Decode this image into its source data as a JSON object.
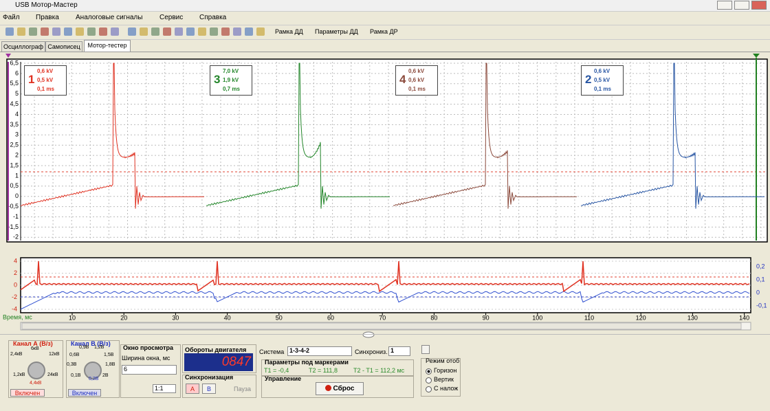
{
  "window": {
    "title": "USB Мотор-Мастер"
  },
  "menu": [
    "Файл",
    "Правка",
    "Аналоговые сигналы",
    "Сервис",
    "Справка"
  ],
  "toolbar": [
    "Рамка ДД",
    "Параметры ДД",
    "Рамка ДР"
  ],
  "tabs": [
    "Осциллограф",
    "Самописец",
    "Мотор-тестер"
  ],
  "scope": {
    "yticks": [
      "6,5",
      "6",
      "5,5",
      "5",
      "4,5",
      "4",
      "3,5",
      "3",
      "2,5",
      "2",
      "1,5",
      "1",
      "0,5",
      "0",
      "-0,5",
      "-1",
      "-1,5",
      "-2"
    ],
    "cylinders": [
      {
        "number": "1",
        "lines": [
          "0,6 kV",
          "0,5 kV",
          "0,1 ms"
        ]
      },
      {
        "number": "3",
        "lines": [
          "7,0 kV",
          "1,9 kV",
          "0,7 ms"
        ]
      },
      {
        "number": "4",
        "lines": [
          "0,6 kV",
          "0,6 kV",
          "0,1 ms"
        ]
      },
      {
        "number": "2",
        "lines": [
          "0,6 kV",
          "0,5 kV",
          "0,1 ms"
        ]
      }
    ]
  },
  "lower": {
    "yticks_left": [
      "4",
      "2",
      "0",
      "-2",
      "-4"
    ],
    "yticks_right": [
      "0,2",
      "0,1",
      "0",
      "-0,1"
    ]
  },
  "xaxis": {
    "label": "Время, мс",
    "ticks": [
      "10",
      "20",
      "30",
      "40",
      "50",
      "60",
      "70",
      "80",
      "90",
      "100",
      "110",
      "120",
      "130",
      "140"
    ]
  },
  "panel": {
    "channel_a": {
      "title": "Канал А (В/з)",
      "scales": [
        "2,4кВ",
        "6кВ",
        "12кВ",
        "1,2кВ",
        "4,4кВ",
        "24кВ"
      ],
      "button": "Включен"
    },
    "channel_b": {
      "title": "Канал В (В/з)",
      "scales": [
        "0,9В",
        "1,2В",
        "0,6В",
        "1,5В",
        "0,3В",
        "1,8В",
        "0,1В",
        "0,2В",
        "2В"
      ],
      "button": "Включен"
    },
    "view": {
      "title": "Окно просмотра",
      "width_label": "Ширина окна, мс",
      "width_value": "6",
      "zoom": "1:1"
    },
    "rpm": {
      "title": "Обороты двигателя",
      "value": "0847"
    },
    "sync": {
      "title": "Синхронизация",
      "a": "A",
      "b": "B",
      "pause": "Пауза"
    },
    "system": {
      "label": "Система",
      "value": "1-3-4-2",
      "sync_label": "Синхрониз.",
      "sync_value": "1"
    },
    "markers": {
      "title": "Параметры под маркерами",
      "t1": "T1 = -0,4",
      "t2": "T2 = 111,8",
      "diff": "T2 - T1 = 112,2 мс"
    },
    "control": {
      "title": "Управление",
      "reset": "Сброс"
    },
    "mode": {
      "title": "Режим отоб",
      "options": [
        "Горизон",
        "Вертик",
        "С налож"
      ]
    }
  }
}
